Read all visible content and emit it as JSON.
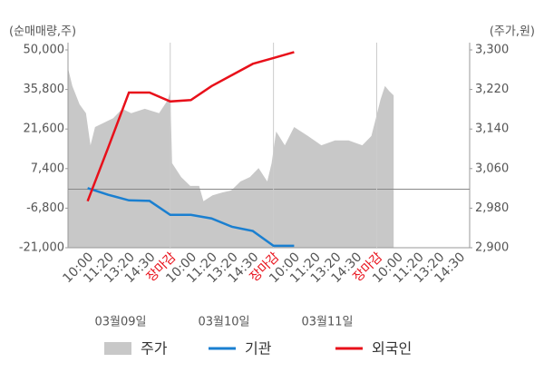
{
  "chart_data": {
    "type": "line",
    "y_unit_label": "(순매매량,주)",
    "y2_unit_label": "(주가,원)",
    "xlim": [
      -0.95,
      18.5
    ],
    "xticks": [
      {
        "value": 0,
        "label": "10:00"
      },
      {
        "value": 1,
        "label": "11:20"
      },
      {
        "value": 2,
        "label": "13:20"
      },
      {
        "value": 3,
        "label": "14:30"
      },
      {
        "value": 4,
        "label": "장마감"
      },
      {
        "value": 5,
        "label": "10:00"
      },
      {
        "value": 6,
        "label": "11:20"
      },
      {
        "value": 7,
        "label": "13:20"
      },
      {
        "value": 8,
        "label": "14:30"
      },
      {
        "value": 9,
        "label": "장마감"
      },
      {
        "value": 10,
        "label": "10:00"
      },
      {
        "value": 11,
        "label": "11:20"
      },
      {
        "value": 12,
        "label": "13:20"
      },
      {
        "value": 13,
        "label": "14:30"
      },
      {
        "value": 14,
        "label": "장마감"
      },
      {
        "value": 15,
        "label": "10:00"
      },
      {
        "value": 16,
        "label": "11:20"
      },
      {
        "value": 17,
        "label": "13:20"
      },
      {
        "value": 18,
        "label": "14:30"
      }
    ],
    "dates": [
      "03월09일",
      "03월10일",
      "03월11일"
    ],
    "ylim": [
      -21000,
      50000
    ],
    "yticks": [
      {
        "value": 50000,
        "label": "50,000"
      },
      {
        "value": 35800,
        "label": "35,800"
      },
      {
        "value": 21600,
        "label": "21,600"
      },
      {
        "value": 7400,
        "label": "7,400"
      },
      {
        "value": -6800,
        "label": "-6,800"
      },
      {
        "value": -21000,
        "label": "-21,000"
      }
    ],
    "y2lim": [
      2900,
      3300
    ],
    "y2ticks": [
      {
        "value": 3300,
        "label": "3,300"
      },
      {
        "value": 3220,
        "label": "3,220"
      },
      {
        "value": 3140,
        "label": "3,140"
      },
      {
        "value": 3060,
        "label": "3,060"
      },
      {
        "value": 2980,
        "label": "2,980"
      },
      {
        "value": 2900,
        "label": "2,900"
      }
    ],
    "series": [
      {
        "name": "주가",
        "type": "area",
        "axis": "y2",
        "color": "#c8c8c8",
        "x": [
          -0.95,
          -0.74,
          -0.39,
          -0.08,
          0.14,
          0.36,
          0.8,
          1.24,
          1.68,
          2.11,
          2.77,
          3.46,
          3.89,
          4.0,
          4.09,
          4.53,
          4.97,
          5.4,
          5.61,
          6.05,
          6.54,
          6.96,
          7.4,
          7.86,
          8.28,
          8.7,
          8.91,
          9.13,
          9.55,
          10.0,
          10.67,
          11.32,
          11.98,
          12.64,
          13.3,
          13.74,
          13.96,
          14.18,
          14.4,
          14.6,
          14.82
        ],
        "values": [
          3263,
          3227,
          3190,
          3172,
          3107,
          3144,
          3153,
          3162,
          3181,
          3172,
          3181,
          3172,
          3199,
          3217,
          3071,
          3043,
          3025,
          3025,
          2994,
          3006,
          3012,
          3016,
          3034,
          3043,
          3061,
          3034,
          3071,
          3135,
          3107,
          3144,
          3126,
          3107,
          3117,
          3117,
          3107,
          3126,
          3162,
          3199,
          3227,
          3217,
          3208
        ]
      },
      {
        "name": "기관",
        "type": "line",
        "color": "#1a7fd0",
        "x": [
          0,
          1,
          2,
          3,
          4,
          5,
          6,
          7,
          8,
          9,
          10
        ],
        "values": [
          400,
          -2000,
          -4000,
          -4200,
          -9200,
          -9200,
          -10500,
          -13500,
          -15000,
          -20300,
          -20300
        ]
      },
      {
        "name": "외국인",
        "type": "line",
        "color": "#e8101a",
        "x": [
          0,
          1,
          2,
          3,
          4,
          5,
          6,
          7,
          8,
          9,
          10
        ],
        "values": [
          -4300,
          15000,
          34700,
          34700,
          31500,
          32000,
          37000,
          41000,
          45000,
          47100,
          49200
        ]
      }
    ]
  }
}
